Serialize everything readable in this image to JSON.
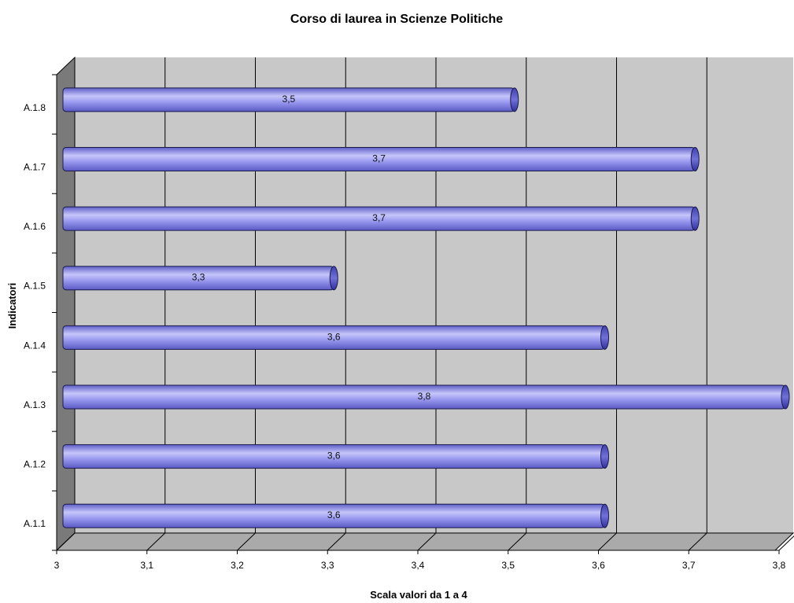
{
  "chart_data": {
    "type": "bar",
    "orientation": "horizontal",
    "title": "Corso di laurea in  Scienze Politiche",
    "xlabel": "Scala valori da 1 a 4",
    "ylabel": "Indicatori",
    "categories": [
      "A.1.1",
      "A.1.2",
      "A.1.3",
      "A.1.4",
      "A.1.5",
      "A.1.6",
      "A.1.7",
      "A.1.8"
    ],
    "values": [
      3.6,
      3.6,
      3.8,
      3.6,
      3.3,
      3.7,
      3.7,
      3.5
    ],
    "data_labels": [
      "3,6",
      "3,6",
      "3,8",
      "3,6",
      "3,3",
      "3,7",
      "3,7",
      "3,5"
    ],
    "xlim": [
      3,
      3.8
    ],
    "xticks": [
      "3",
      "3,1",
      "3,2",
      "3,3",
      "3,4",
      "3,5",
      "3,6",
      "3,7",
      "3,8"
    ],
    "grid": true,
    "legend": "none",
    "colors": {
      "bar": "#8c8cec",
      "bar_highlight": "#c8c8fa",
      "bar_shadow": "#5858c0",
      "bar_cap": "#3a3aa8",
      "plot_background": "#c8c8c8",
      "left_wall": "#7a7a7a",
      "floor": "#aaaaaa",
      "gridline": "#000000"
    }
  }
}
